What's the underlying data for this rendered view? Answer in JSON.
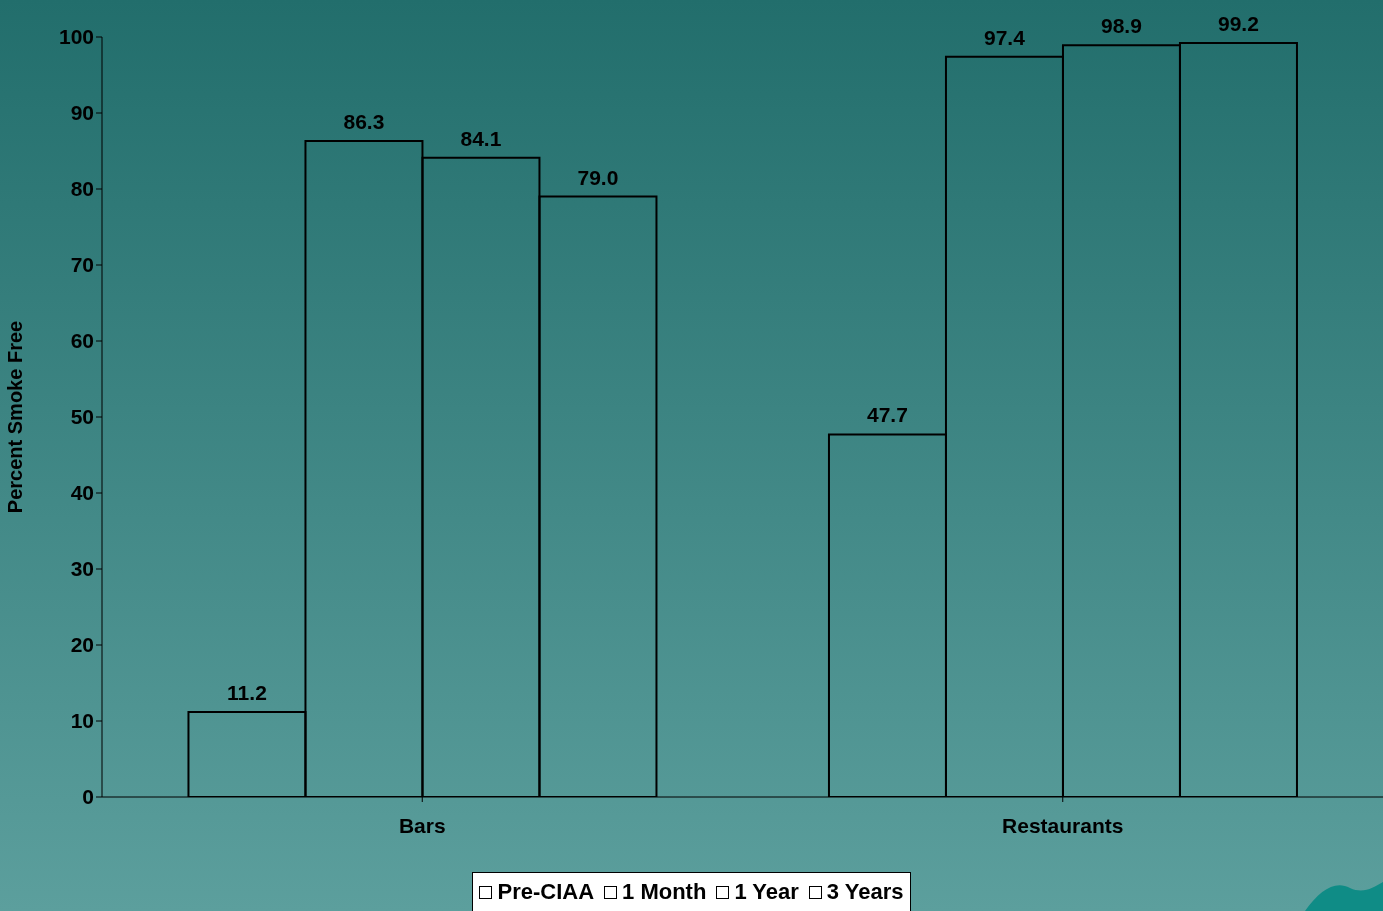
{
  "chart_data": {
    "type": "bar",
    "ylabel": "Percent Smoke Free",
    "categories": [
      "Bars",
      "Restaurants"
    ],
    "series": [
      {
        "name": "Pre-CIAA",
        "color": "#000000",
        "values": [
          11.2,
          47.7
        ],
        "value_labels": [
          "11.2",
          "47.7"
        ]
      },
      {
        "name": "1 Month",
        "color": "#000000",
        "values": [
          86.3,
          97.4
        ],
        "value_labels": [
          "86.3",
          "97.4"
        ]
      },
      {
        "name": "1 Year",
        "color": "#000000",
        "values": [
          84.1,
          98.9
        ],
        "value_labels": [
          "84.1",
          "98.9"
        ]
      },
      {
        "name": "3 Years",
        "color": "#000000",
        "values": [
          79.0,
          99.2
        ],
        "value_labels": [
          "79.0",
          "99.2"
        ]
      }
    ],
    "ylim": [
      0,
      100
    ],
    "yticks": [
      0,
      10,
      20,
      30,
      40,
      50,
      60,
      70,
      80,
      90,
      100
    ],
    "grid": false,
    "legend": "bottom"
  }
}
